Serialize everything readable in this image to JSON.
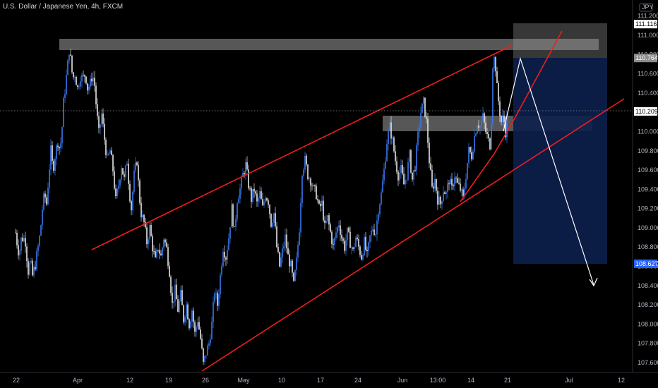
{
  "title": "U.S. Dollar / Japanese Yen, 4h, FXCM",
  "chart_data": {
    "type": "candlestick",
    "title": "U.S. Dollar / Japanese Yen, 4h, FXCM",
    "currency": "JPY",
    "yticks": [
      "111.200",
      "111.000",
      "110.800",
      "110.600",
      "110.400",
      "110.200",
      "110.000",
      "109.800",
      "109.600",
      "109.400",
      "109.200",
      "109.000",
      "108.800",
      "108.600",
      "108.400",
      "108.200",
      "108.000",
      "107.800",
      "107.600"
    ],
    "xticks": [
      "22",
      "Apr",
      "12",
      "19",
      "26",
      "May",
      "10",
      "17",
      "24",
      "Jun",
      "13:00",
      "14",
      "21",
      "Jul",
      "12"
    ],
    "price_labels": [
      {
        "value": "111.116",
        "style": "light"
      },
      {
        "value": "110.764",
        "style": "gray"
      },
      {
        "value": "110.209",
        "style": "light"
      },
      {
        "value": "108.627",
        "style": "blue"
      }
    ],
    "ylim": [
      107.5,
      111.25
    ],
    "close_path": [
      [
        22,
        108.95
      ],
      [
        24,
        108.85
      ],
      [
        27,
        108.72
      ],
      [
        30,
        108.88
      ],
      [
        33,
        108.9
      ],
      [
        36,
        108.86
      ],
      [
        38,
        108.7
      ],
      [
        40,
        108.55
      ],
      [
        43,
        108.65
      ],
      [
        46,
        108.5
      ],
      [
        50,
        108.62
      ],
      [
        54,
        108.8
      ],
      [
        57,
        108.95
      ],
      [
        60,
        109.2
      ],
      [
        63,
        109.35
      ],
      [
        66,
        109.25
      ],
      [
        69,
        109.55
      ],
      [
        72,
        109.8
      ],
      [
        75,
        109.6
      ],
      [
        78,
        109.75
      ],
      [
        82,
        109.9
      ],
      [
        85,
        109.8
      ],
      [
        88,
        110.05
      ],
      [
        90,
        110.3
      ],
      [
        93,
        110.5
      ],
      [
        96,
        110.7
      ],
      [
        98,
        110.85
      ],
      [
        100,
        110.75
      ],
      [
        103,
        110.55
      ],
      [
        106,
        110.6
      ],
      [
        110,
        110.45
      ],
      [
        114,
        110.58
      ],
      [
        117,
        110.55
      ],
      [
        121,
        110.6
      ],
      [
        124,
        110.45
      ],
      [
        128,
        110.5
      ],
      [
        131,
        110.6
      ],
      [
        134,
        110.48
      ],
      [
        137,
        110.2
      ],
      [
        140,
        109.98
      ],
      [
        144,
        110.18
      ],
      [
        148,
        109.92
      ],
      [
        152,
        109.7
      ],
      [
        156,
        109.8
      ],
      [
        160,
        109.6
      ],
      [
        164,
        109.28
      ],
      [
        168,
        109.45
      ],
      [
        172,
        109.65
      ],
      [
        176,
        109.5
      ],
      [
        180,
        109.7
      ],
      [
        183,
        109.4
      ],
      [
        186,
        109.2
      ],
      [
        190,
        109.55
      ],
      [
        194,
        109.7
      ],
      [
        197,
        109.35
      ],
      [
        200,
        109.15
      ],
      [
        204,
        109.05
      ],
      [
        208,
        108.85
      ],
      [
        212,
        109.0
      ],
      [
        216,
        108.8
      ],
      [
        220,
        108.65
      ],
      [
        224,
        108.8
      ],
      [
        228,
        108.7
      ],
      [
        232,
        108.9
      ],
      [
        236,
        108.78
      ],
      [
        240,
        108.55
      ],
      [
        244,
        108.2
      ],
      [
        248,
        108.35
      ],
      [
        252,
        108.15
      ],
      [
        256,
        108.3
      ],
      [
        260,
        108.05
      ],
      [
        264,
        108.2
      ],
      [
        268,
        108.0
      ],
      [
        272,
        108.15
      ],
      [
        276,
        107.9
      ],
      [
        280,
        108.05
      ],
      [
        284,
        107.85
      ],
      [
        288,
        107.58
      ],
      [
        292,
        107.7
      ],
      [
        296,
        107.8
      ],
      [
        300,
        108.0
      ],
      [
        304,
        108.35
      ],
      [
        308,
        108.2
      ],
      [
        312,
        108.5
      ],
      [
        316,
        108.8
      ],
      [
        320,
        108.7
      ],
      [
        324,
        108.9
      ],
      [
        328,
        109.2
      ],
      [
        332,
        108.95
      ],
      [
        336,
        109.3
      ],
      [
        340,
        109.4
      ],
      [
        344,
        109.55
      ],
      [
        348,
        109.65
      ],
      [
        352,
        109.45
      ],
      [
        356,
        109.3
      ],
      [
        360,
        109.4
      ],
      [
        364,
        109.25
      ],
      [
        368,
        109.35
      ],
      [
        372,
        109.2
      ],
      [
        376,
        109.35
      ],
      [
        380,
        109.28
      ],
      [
        384,
        109.05
      ],
      [
        388,
        109.15
      ],
      [
        392,
        108.8
      ],
      [
        396,
        108.6
      ],
      [
        400,
        108.75
      ],
      [
        404,
        108.9
      ],
      [
        408,
        108.7
      ],
      [
        412,
        108.6
      ],
      [
        416,
        108.4
      ],
      [
        420,
        108.65
      ],
      [
        424,
        109.0
      ],
      [
        428,
        109.6
      ],
      [
        432,
        109.7
      ],
      [
        436,
        109.55
      ],
      [
        440,
        109.5
      ],
      [
        444,
        109.4
      ],
      [
        448,
        109.35
      ],
      [
        452,
        109.2
      ],
      [
        456,
        109.25
      ],
      [
        460,
        109.0
      ],
      [
        464,
        109.1
      ],
      [
        468,
        108.95
      ],
      [
        472,
        108.8
      ],
      [
        476,
        108.95
      ],
      [
        480,
        109.05
      ],
      [
        484,
        108.9
      ],
      [
        488,
        108.8
      ],
      [
        492,
        108.95
      ],
      [
        496,
        108.85
      ],
      [
        500,
        108.75
      ],
      [
        504,
        108.9
      ],
      [
        508,
        108.8
      ],
      [
        512,
        108.7
      ],
      [
        516,
        108.85
      ],
      [
        520,
        108.7
      ],
      [
        524,
        108.9
      ],
      [
        528,
        109.0
      ],
      [
        532,
        108.95
      ],
      [
        536,
        109.2
      ],
      [
        540,
        109.35
      ],
      [
        544,
        109.6
      ],
      [
        548,
        109.9
      ],
      [
        552,
        110.05
      ],
      [
        556,
        109.9
      ],
      [
        560,
        109.7
      ],
      [
        564,
        109.55
      ],
      [
        568,
        109.6
      ],
      [
        572,
        109.45
      ],
      [
        576,
        109.55
      ],
      [
        580,
        109.75
      ],
      [
        584,
        109.5
      ],
      [
        588,
        109.65
      ],
      [
        592,
        109.95
      ],
      [
        596,
        110.2
      ],
      [
        600,
        110.3
      ],
      [
        604,
        110.1
      ],
      [
        608,
        109.7
      ],
      [
        612,
        109.4
      ],
      [
        616,
        109.5
      ],
      [
        620,
        109.3
      ],
      [
        624,
        109.25
      ],
      [
        628,
        109.4
      ],
      [
        632,
        109.35
      ],
      [
        636,
        109.5
      ],
      [
        640,
        109.4
      ],
      [
        644,
        109.55
      ],
      [
        648,
        109.45
      ],
      [
        652,
        109.4
      ],
      [
        656,
        109.3
      ],
      [
        660,
        109.55
      ],
      [
        664,
        109.8
      ],
      [
        668,
        109.75
      ],
      [
        672,
        109.95
      ],
      [
        676,
        110.1
      ],
      [
        680,
        110.05
      ],
      [
        684,
        110.15
      ],
      [
        688,
        110.0
      ],
      [
        692,
        109.9
      ],
      [
        695,
        109.85
      ],
      [
        698,
        110.7
      ],
      [
        701,
        110.78
      ],
      [
        704,
        110.45
      ],
      [
        707,
        110.25
      ],
      [
        710,
        110.1
      ],
      [
        713,
        110.15
      ],
      [
        716,
        110.0
      ],
      [
        719,
        110.21
      ]
    ]
  }
}
